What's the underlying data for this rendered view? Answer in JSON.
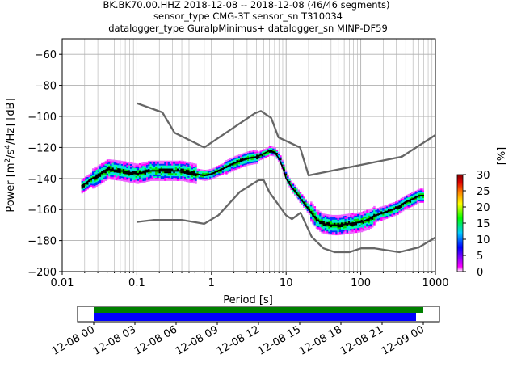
{
  "title_lines": [
    "BK.BK70.00.HHZ   2018-12-08 -- 2018-12-08  (46/46 segments)",
    "sensor_type CMG-3T sensor_sn T310034",
    "datalogger_type GuralpMinimus+ datalogger_sn MINP-DF59"
  ],
  "chart_data": {
    "type": "heatmap",
    "title": "BK.BK70.00.HHZ   2018-12-08 -- 2018-12-08  (46/46 segments)",
    "xlabel": "Period [s]",
    "ylabel": "Power [m²/s⁴/Hz] [dB]",
    "x_scale": "log",
    "xlim": [
      0.01,
      1000
    ],
    "ylim": [
      -200,
      -50
    ],
    "grid": true,
    "x_ticks": [
      0.01,
      0.1,
      1,
      10,
      100,
      1000
    ],
    "x_tick_labels": [
      "0.01",
      "0.1",
      "1",
      "10",
      "100",
      "1000"
    ],
    "y_ticks": [
      -60,
      -80,
      -100,
      -120,
      -140,
      -160,
      -180,
      -200
    ],
    "y_tick_labels": [
      "−60",
      "−80",
      "−100",
      "−120",
      "−140",
      "−160",
      "−180",
      "−200"
    ],
    "colorbar": {
      "label": "[%]",
      "range": [
        0,
        30
      ],
      "ticks": [
        0,
        5,
        10,
        15,
        20,
        25,
        30
      ],
      "tick_labels": [
        "0",
        "5",
        "10",
        "15",
        "20",
        "25",
        "30"
      ],
      "colors": [
        "#ffffff",
        "#ff00ff",
        "#0000ff",
        "#00ccff",
        "#00ff00",
        "#ffff00",
        "#ff8000",
        "#e00000",
        "#800000"
      ]
    },
    "series": [
      {
        "role": "high-noise-model",
        "color": "#666666",
        "x": [
          0.1,
          0.22,
          0.32,
          0.8,
          3.8,
          4.6,
          6.3,
          7.9,
          15.4,
          20,
          354.8,
          1000
        ],
        "y": [
          -91.5,
          -97.4,
          -110.5,
          -120,
          -98,
          -96.5,
          -101,
          -113.5,
          -120,
          -138,
          -126,
          -112
        ]
      },
      {
        "role": "low-noise-model",
        "color": "#666666",
        "x": [
          0.1,
          0.17,
          0.4,
          0.8,
          1.24,
          2.4,
          4.3,
          5,
          6,
          10,
          12,
          15.6,
          21.9,
          31.6,
          45,
          70,
          101,
          154,
          328,
          600,
          1000
        ],
        "y": [
          -168,
          -166.7,
          -166.7,
          -169.2,
          -163.7,
          -148.6,
          -141.1,
          -141.1,
          -149,
          -163.8,
          -166.2,
          -162.1,
          -177.5,
          -185,
          -187.5,
          -187.5,
          -185,
          -185,
          -187.5,
          -184.4,
          -178
        ]
      },
      {
        "role": "median",
        "color": "#000000",
        "x": [
          0.018,
          0.025,
          0.03,
          0.04,
          0.06,
          0.1,
          0.15,
          0.25,
          0.4,
          0.6,
          0.8,
          1.0,
          1.5,
          2,
          3,
          4,
          5,
          6,
          7,
          8,
          9,
          10,
          12,
          15,
          20,
          25,
          30,
          40,
          50,
          70,
          100,
          130,
          150,
          200,
          300,
          400,
          500,
          600,
          700
        ],
        "y": [
          -145,
          -140,
          -138,
          -134,
          -135,
          -137,
          -135,
          -135,
          -135,
          -137,
          -138,
          -137,
          -133,
          -130,
          -127,
          -126,
          -124,
          -122,
          -123,
          -127,
          -133,
          -140,
          -146,
          -152,
          -160,
          -166,
          -169,
          -170,
          -170,
          -169,
          -168,
          -166,
          -164,
          -162,
          -159,
          -155,
          -153,
          -151,
          -151
        ]
      }
    ]
  },
  "time_bar": {
    "tick_labels": [
      "12-08 00",
      "12-08 03",
      "12-08 06",
      "12-08 09",
      "12-08 12",
      "12-08 15",
      "12-08 18",
      "12-08 21",
      "12-09 00"
    ],
    "data_coverage_color": "#008000",
    "segments_color": "#0000ff"
  }
}
